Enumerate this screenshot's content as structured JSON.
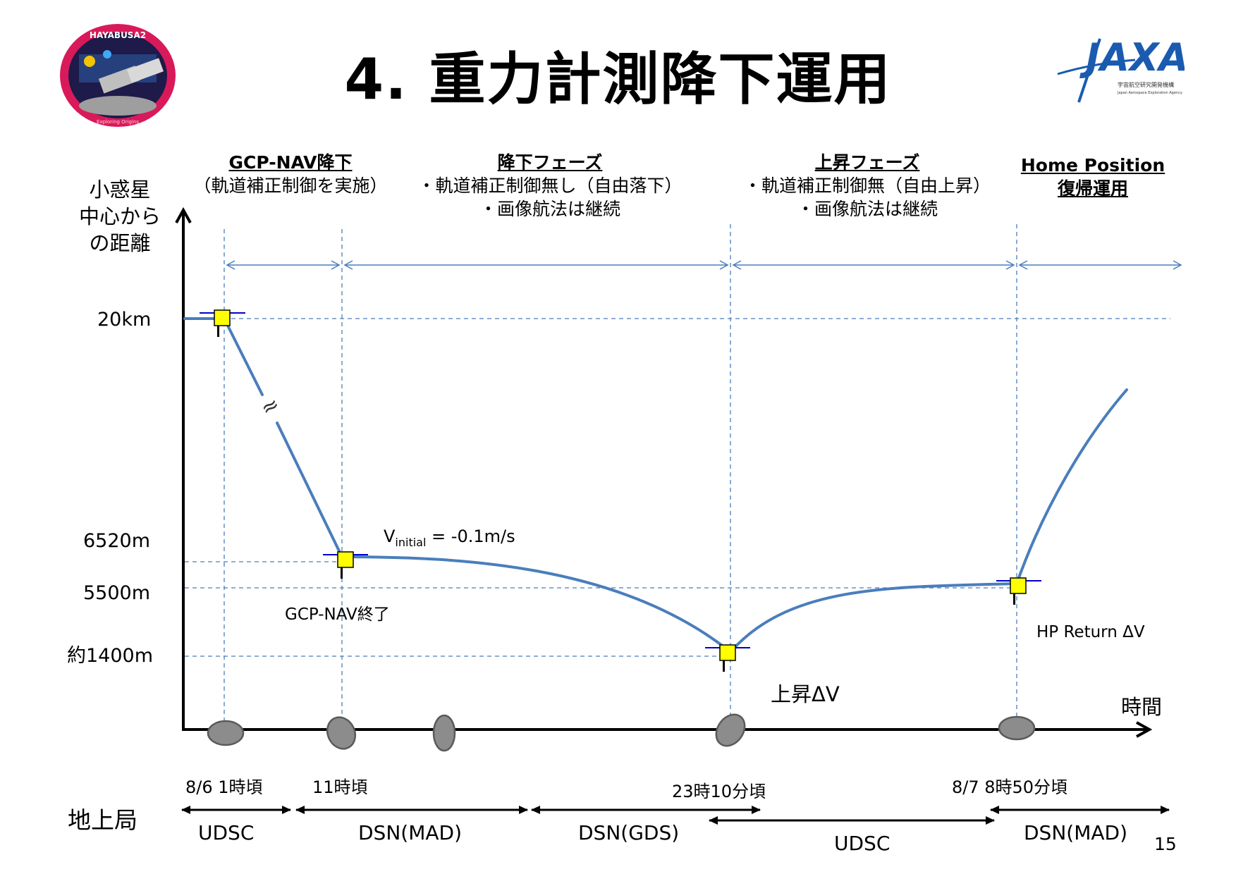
{
  "title": "4. 重力計測降下運用",
  "page_number": "15",
  "logos": {
    "mission_badge": "HAYABUSA2",
    "mission_badge_motto": "Exploring Origins",
    "agency": "JAXA",
    "agency_sub_jp": "宇宙航空研究開発機構",
    "agency_sub_en": "Japan Aerospace Exploration Agency"
  },
  "phases": [
    {
      "title": "GCP-NAV降下",
      "lines": [
        "（軌道補正制御を実施）"
      ]
    },
    {
      "title": "降下フェーズ",
      "lines": [
        "・軌道補正制御無し（自由落下）",
        "・画像航法は継続"
      ]
    },
    {
      "title": "上昇フェーズ",
      "lines": [
        "・軌道補正制御無（自由上昇）",
        "・画像航法は継続"
      ]
    },
    {
      "title": "Home Position",
      "lines": [
        "復帰運用"
      ]
    }
  ],
  "y_axis": {
    "title_lines": [
      "小惑星",
      "中心から",
      "の距離"
    ],
    "labels": [
      "20km",
      "6520m",
      "5500m",
      "約1400m"
    ]
  },
  "x_axis": {
    "title": "時間"
  },
  "annotations": {
    "v_initial_prefix": "V",
    "v_initial_sub": "initial",
    "v_initial_suffix": " = -0.1m/s",
    "gcp_nav_end": "GCP-NAV終了",
    "ascent_dv": "上昇ΔV",
    "hp_return_dv": "HP Return ΔV",
    "squiggle": "≈"
  },
  "times": [
    "8/6 1時頃",
    "11時頃",
    "23時10分頃",
    "8/7 8時50分頃"
  ],
  "ground_stations": {
    "label": "地上局",
    "items": [
      "UDSC",
      "DSN(MAD)",
      "DSN(GDS)",
      "UDSC",
      "DSN(MAD)"
    ]
  },
  "colors": {
    "trajectory": "#4a7ebb",
    "guide_lines": "#4a7ebb",
    "spacecraft_body": "#ffff00",
    "solar_panel": "#0000cc",
    "asteroid": "#8c8c8c"
  }
}
